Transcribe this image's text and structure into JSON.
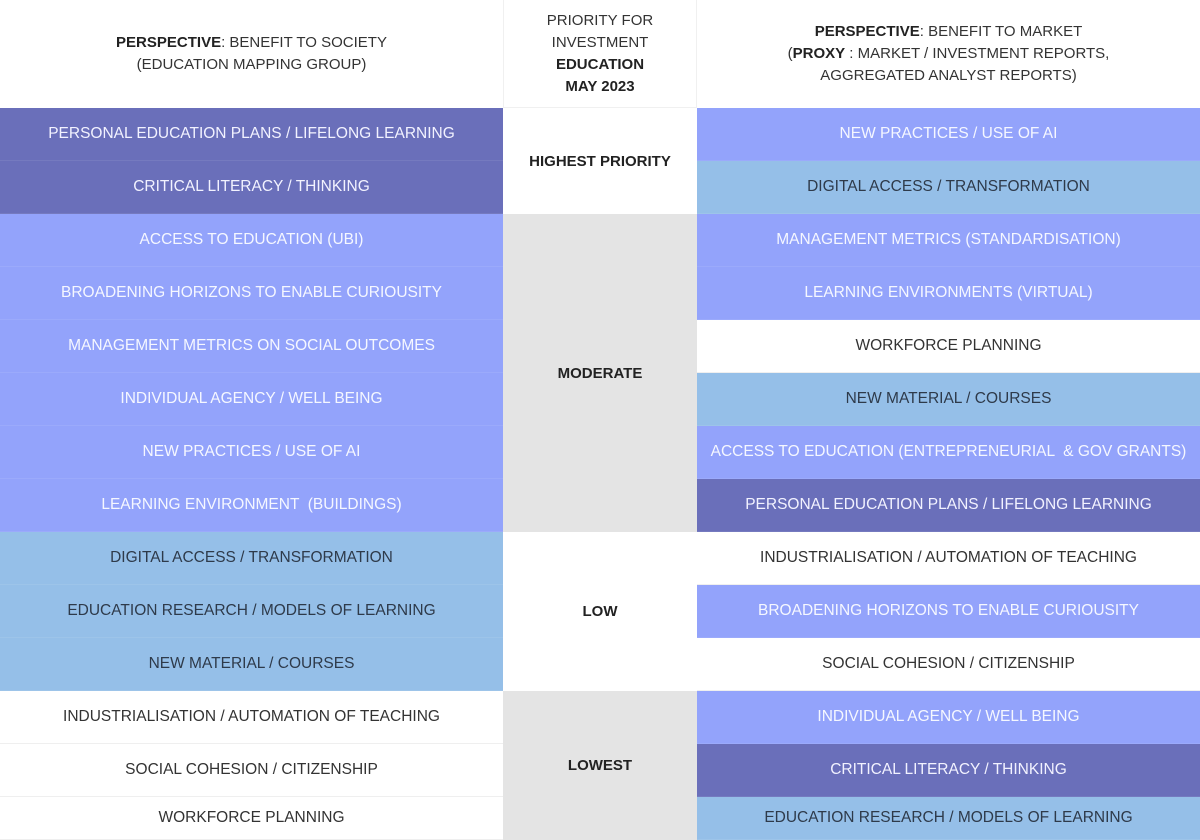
{
  "header": {
    "left": {
      "bold": "PERSPECTIVE",
      "line1_rest": ": BENEFIT TO SOCIETY",
      "line2": "(EDUCATION MAPPING GROUP)"
    },
    "middle": {
      "line1": "PRIORITY FOR",
      "line2": "INVESTMENT",
      "line3": "EDUCATION",
      "line4": "MAY 2023"
    },
    "right": {
      "bold": "PERSPECTIVE",
      "line1_rest": ": BENEFIT TO MARKET",
      "line2_open": "(",
      "line2_bold": "PROXY",
      "line2_rest": " : MARKET / INVESTMENT REPORTS,",
      "line3": "AGGREGATED ANALYST REPORTS)"
    }
  },
  "colors": {
    "dark": "#6a6fba",
    "mid": "#93a3fb",
    "light": "#95bfe8",
    "white": "#ffffff",
    "priority_grey": "#e4e4e4"
  },
  "priorities": [
    {
      "label": "HIGHEST PRIORITY",
      "rows": 2
    },
    {
      "label": "MODERATE",
      "rows": 6
    },
    {
      "label": "LOW",
      "rows": 3
    },
    {
      "label": "LOWEST",
      "rows": 3
    }
  ],
  "society": [
    {
      "label": "PERSONAL EDUCATION PLANS / LIFELONG LEARNING",
      "shade": "dark"
    },
    {
      "label": "CRITICAL LITERACY / THINKING",
      "shade": "dark"
    },
    {
      "label": "ACCESS TO EDUCATION (UBI)",
      "shade": "mid"
    },
    {
      "label": "BROADENING HORIZONS TO ENABLE CURIOUSITY",
      "shade": "mid"
    },
    {
      "label": "MANAGEMENT METRICS ON SOCIAL OUTCOMES",
      "shade": "mid"
    },
    {
      "label": "INDIVIDUAL AGENCY / WELL BEING",
      "shade": "mid"
    },
    {
      "label": "NEW PRACTICES / USE OF AI",
      "shade": "mid"
    },
    {
      "label": "LEARNING ENVIRONMENT  (BUILDINGS)",
      "shade": "mid"
    },
    {
      "label": "DIGITAL ACCESS / TRANSFORMATION",
      "shade": "light"
    },
    {
      "label": "EDUCATION RESEARCH / MODELS OF LEARNING",
      "shade": "light"
    },
    {
      "label": "NEW MATERIAL / COURSES",
      "shade": "light"
    },
    {
      "label": "INDUSTRIALISATION / AUTOMATION OF TEACHING",
      "shade": "white"
    },
    {
      "label": "SOCIAL COHESION / CITIZENSHIP",
      "shade": "white"
    },
    {
      "label": "WORKFORCE PLANNING",
      "shade": "white"
    }
  ],
  "market": [
    {
      "label": "NEW PRACTICES / USE OF AI",
      "shade": "mid"
    },
    {
      "label": "DIGITAL ACCESS / TRANSFORMATION",
      "shade": "light"
    },
    {
      "label": "MANAGEMENT METRICS (STANDARDISATION)",
      "shade": "mid"
    },
    {
      "label": "LEARNING ENVIRONMENTS (VIRTUAL)",
      "shade": "mid"
    },
    {
      "label": "WORKFORCE PLANNING",
      "shade": "white"
    },
    {
      "label": "NEW MATERIAL / COURSES",
      "shade": "light"
    },
    {
      "label": "ACCESS TO EDUCATION (ENTREPRENEURIAL  & GOV GRANTS)",
      "shade": "mid"
    },
    {
      "label": "PERSONAL EDUCATION PLANS / LIFELONG LEARNING",
      "shade": "dark"
    },
    {
      "label": "INDUSTRIALISATION / AUTOMATION OF TEACHING",
      "shade": "white"
    },
    {
      "label": "BROADENING HORIZONS TO ENABLE CURIOUSITY",
      "shade": "mid"
    },
    {
      "label": "SOCIAL COHESION / CITIZENSHIP",
      "shade": "white"
    },
    {
      "label": "INDIVIDUAL AGENCY / WELL BEING",
      "shade": "mid"
    },
    {
      "label": "CRITICAL LITERACY / THINKING",
      "shade": "dark"
    },
    {
      "label": "EDUCATION RESEARCH / MODELS OF LEARNING",
      "shade": "light"
    }
  ]
}
